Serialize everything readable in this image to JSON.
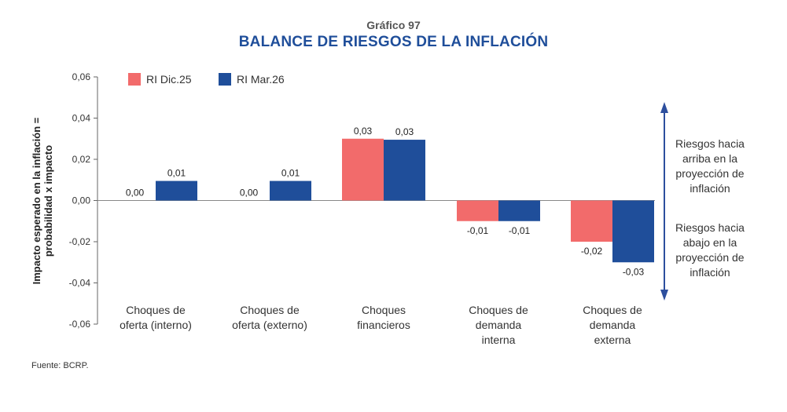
{
  "header": {
    "subtitle": "Gráfico 97",
    "title": "BALANCE DE RIESGOS DE LA INFLACIÓN"
  },
  "source": "Fuente: BCRP.",
  "colors": {
    "series1": "#f26b6b",
    "series2": "#1f4e9a",
    "arrow": "#2d4f9e"
  },
  "chart_data": {
    "type": "bar",
    "title": "BALANCE DE RIESGOS DE LA INFLACIÓN",
    "ylabel_lines": [
      "Impacto esperado en la inflación =",
      "probabilidad x impacto"
    ],
    "xlabel": "",
    "ylim": [
      -0.06,
      0.06
    ],
    "yticks": [
      0.06,
      0.04,
      0.02,
      0.0,
      -0.02,
      -0.04,
      -0.06
    ],
    "ytick_labels": [
      "0,06",
      "0,04",
      "0,02",
      "0,00",
      "-0,02",
      "-0,04",
      "-0,06"
    ],
    "categories": [
      [
        "Choques de",
        "oferta (interno)"
      ],
      [
        "Choques de",
        "oferta (externo)"
      ],
      [
        "Choques",
        "financieros"
      ],
      [
        "Choques de",
        "demanda",
        "interna"
      ],
      [
        "Choques de",
        "demanda",
        "externa"
      ]
    ],
    "series": [
      {
        "name": "RI Dic.25",
        "values": [
          0.0,
          0.0,
          0.03,
          -0.01,
          -0.02
        ],
        "labels": [
          "0,00",
          "0,00",
          "0,03",
          "-0,01",
          "-0,02"
        ]
      },
      {
        "name": "RI Mar.26",
        "values": [
          0.0095,
          0.0095,
          0.0295,
          -0.01,
          -0.03
        ],
        "labels": [
          "0,01",
          "0,01",
          "0,03",
          "-0,01",
          "-0,03"
        ]
      }
    ],
    "legend_position": "top-left",
    "grid": false,
    "annotations": {
      "up": [
        "Riesgos hacia",
        "arriba en la",
        "proyección de",
        "inflación"
      ],
      "down": [
        "Riesgos hacia",
        "abajo en la",
        "proyección de",
        "inflación"
      ]
    }
  }
}
